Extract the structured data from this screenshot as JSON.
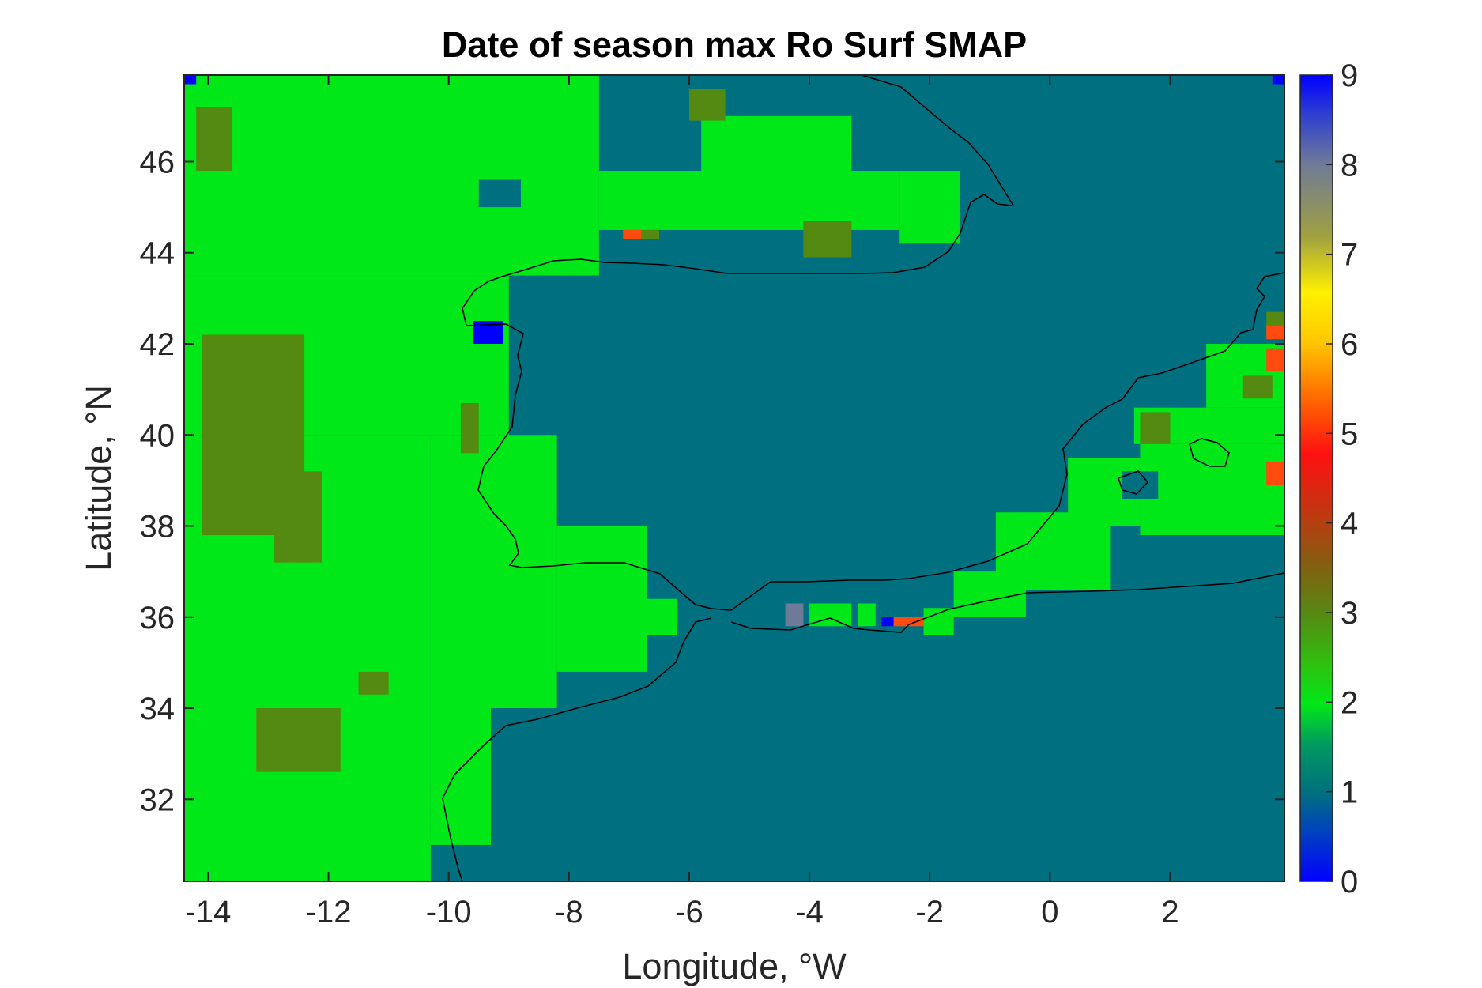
{
  "chart_data": {
    "type": "heatmap",
    "title": "Date of season max Ro Surf SMAP",
    "xlabel": "Longitude, °W",
    "ylabel": "Latitude, °N",
    "xlim": [
      -14.4,
      3.9
    ],
    "ylim": [
      30.2,
      47.9
    ],
    "x_ticks": [
      -14,
      -12,
      -10,
      -8,
      -6,
      -4,
      -2,
      0,
      2
    ],
    "y_ticks": [
      32,
      34,
      36,
      38,
      40,
      42,
      44,
      46
    ],
    "x_tick_labels": [
      "-14",
      "-12",
      "-10",
      "-8",
      "-6",
      "-4",
      "-2",
      "0",
      "2"
    ],
    "y_tick_labels": [
      "32",
      "34",
      "36",
      "38",
      "40",
      "42",
      "44",
      "46"
    ],
    "colorbar": {
      "range": [
        0,
        9
      ],
      "ticks": [
        0,
        1,
        2,
        3,
        4,
        5,
        6,
        7,
        8,
        9
      ],
      "tick_labels": [
        "0",
        "1",
        "2",
        "3",
        "4",
        "5",
        "6",
        "7",
        "8",
        "9"
      ],
      "position": "right"
    },
    "background_value": 1,
    "colors": {
      "value_1": "#007080",
      "value_2": "#00e817",
      "value_3": "#558a12",
      "value_4_5": "#ff4a10",
      "value_8": "#6f7a98",
      "value_9": "#0000ff"
    },
    "cells": [
      {
        "lon": [
          -14.4,
          -10.3
        ],
        "lat": [
          30.2,
          40.0
        ],
        "value": 2
      },
      {
        "lon": [
          -14.4,
          -9.0
        ],
        "lat": [
          40.0,
          43.5
        ],
        "value": 2
      },
      {
        "lon": [
          -14.4,
          -7.5
        ],
        "lat": [
          43.5,
          47.9
        ],
        "value": 2
      },
      {
        "lon": [
          -10.3,
          -9.3
        ],
        "lat": [
          31.0,
          34.0
        ],
        "value": 2
      },
      {
        "lon": [
          -10.3,
          -8.2
        ],
        "lat": [
          34.0,
          40.0
        ],
        "value": 2
      },
      {
        "lon": [
          -8.2,
          -6.7
        ],
        "lat": [
          34.8,
          38.0
        ],
        "value": 2
      },
      {
        "lon": [
          -6.7,
          -6.2
        ],
        "lat": [
          35.6,
          36.4
        ],
        "value": 2
      },
      {
        "lon": [
          -7.5,
          -2.5
        ],
        "lat": [
          44.5,
          45.8
        ],
        "value": 2
      },
      {
        "lon": [
          -5.8,
          -3.3
        ],
        "lat": [
          45.8,
          47.0
        ],
        "value": 2
      },
      {
        "lon": [
          -2.5,
          -1.5
        ],
        "lat": [
          44.2,
          45.8
        ],
        "value": 2
      },
      {
        "lon": [
          -14.1,
          -12.4
        ],
        "lat": [
          37.8,
          42.2
        ],
        "value": 3
      },
      {
        "lon": [
          -13.8,
          -12.7
        ],
        "lat": [
          38.6,
          40.8
        ],
        "value": 3
      },
      {
        "lon": [
          -12.9,
          -12.1
        ],
        "lat": [
          37.2,
          39.2
        ],
        "value": 3
      },
      {
        "lon": [
          -14.2,
          -13.6
        ],
        "lat": [
          45.8,
          47.2
        ],
        "value": 3
      },
      {
        "lon": [
          -13.2,
          -11.8
        ],
        "lat": [
          32.6,
          34.0
        ],
        "value": 3
      },
      {
        "lon": [
          -11.5,
          -11.0
        ],
        "lat": [
          34.3,
          34.8
        ],
        "value": 3
      },
      {
        "lon": [
          -9.8,
          -9.5
        ],
        "lat": [
          39.6,
          40.7
        ],
        "value": 3
      },
      {
        "lon": [
          -6.9,
          -6.5
        ],
        "lat": [
          44.3,
          44.5
        ],
        "value": 3
      },
      {
        "lon": [
          -6.0,
          -5.4
        ],
        "lat": [
          46.9,
          47.6
        ],
        "value": 3
      },
      {
        "lon": [
          -4.1,
          -3.3
        ],
        "lat": [
          43.9,
          44.7
        ],
        "value": 3
      },
      {
        "lon": [
          -9.5,
          -8.8
        ],
        "lat": [
          45.0,
          45.6
        ],
        "value": 1
      },
      {
        "lon": [
          -9.6,
          -9.1
        ],
        "lat": [
          42.0,
          42.5
        ],
        "value": 9
      },
      {
        "lon": [
          -7.1,
          -6.8
        ],
        "lat": [
          44.3,
          44.5
        ],
        "value": 4.5
      },
      {
        "lon": [
          -4.4,
          -4.1
        ],
        "lat": [
          35.8,
          36.3
        ],
        "value": 8
      },
      {
        "lon": [
          -4.0,
          -3.3
        ],
        "lat": [
          35.8,
          36.3
        ],
        "value": 2
      },
      {
        "lon": [
          -3.2,
          -2.9
        ],
        "lat": [
          35.8,
          36.3
        ],
        "value": 2
      },
      {
        "lon": [
          -2.8,
          -2.6
        ],
        "lat": [
          35.8,
          36.0
        ],
        "value": 9
      },
      {
        "lon": [
          -2.6,
          -2.1
        ],
        "lat": [
          35.8,
          36.0
        ],
        "value": 4.5
      },
      {
        "lon": [
          -2.1,
          -1.6
        ],
        "lat": [
          35.6,
          36.2
        ],
        "value": 2
      },
      {
        "lon": [
          -1.6,
          -0.4
        ],
        "lat": [
          36.0,
          37.0
        ],
        "value": 2
      },
      {
        "lon": [
          -0.9,
          1.0
        ],
        "lat": [
          36.6,
          38.3
        ],
        "value": 2
      },
      {
        "lon": [
          0.3,
          1.5
        ],
        "lat": [
          38.0,
          39.5
        ],
        "value": 2
      },
      {
        "lon": [
          1.5,
          3.9
        ],
        "lat": [
          37.8,
          39.8
        ],
        "value": 2
      },
      {
        "lon": [
          1.4,
          3.9
        ],
        "lat": [
          39.8,
          40.6
        ],
        "value": 2
      },
      {
        "lon": [
          2.6,
          3.9
        ],
        "lat": [
          40.6,
          42.0
        ],
        "value": 2
      },
      {
        "lon": [
          1.5,
          2.0
        ],
        "lat": [
          39.8,
          40.5
        ],
        "value": 3
      },
      {
        "lon": [
          3.2,
          3.7
        ],
        "lat": [
          40.8,
          41.3
        ],
        "value": 3
      },
      {
        "lon": [
          3.6,
          3.9
        ],
        "lat": [
          42.2,
          42.7
        ],
        "value": 3
      },
      {
        "lon": [
          3.6,
          3.9
        ],
        "lat": [
          42.1,
          42.4
        ],
        "value": 4.5
      },
      {
        "lon": [
          3.6,
          3.9
        ],
        "lat": [
          41.4,
          41.9
        ],
        "value": 4.5
      },
      {
        "lon": [
          3.6,
          3.9
        ],
        "lat": [
          38.9,
          39.4
        ],
        "value": 4.5
      },
      {
        "lon": [
          1.2,
          1.8
        ],
        "lat": [
          38.6,
          39.2
        ],
        "value": 1
      },
      {
        "lon": [
          -14.4,
          -14.2
        ],
        "lat": [
          47.7,
          47.9
        ],
        "value": 9
      },
      {
        "lon": [
          3.7,
          3.9
        ],
        "lat": [
          47.7,
          47.9
        ],
        "value": 9
      }
    ]
  }
}
